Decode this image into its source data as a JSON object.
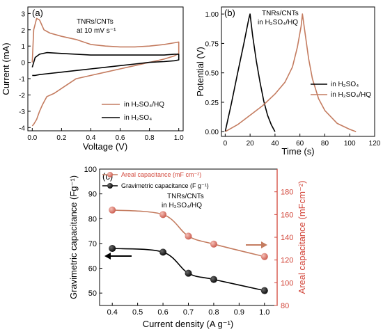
{
  "colors": {
    "brown": "#c47c60",
    "black": "#000000",
    "red_axis": "#d2463a",
    "marker_red": "#d9786a",
    "marker_black": "#111111"
  },
  "chart_data": [
    {
      "panel": "(a)",
      "type": "line",
      "subtype": "cyclic voltammetry",
      "annotation": [
        "TNRs/CNTs",
        "at 10 mV s⁻¹"
      ],
      "xlabel": "Voltage (V)",
      "ylabel": "Current (mA)",
      "xlim": [
        -0.03,
        1.03
      ],
      "ylim": [
        -4.2,
        3.4
      ],
      "xticks": [
        "0.0",
        "0.2",
        "0.4",
        "0.6",
        "0.8",
        "1.0"
      ],
      "yticks": [
        "-4",
        "-3",
        "-2",
        "-1",
        "0",
        "1",
        "2",
        "3"
      ],
      "legend_position": "bottom-right",
      "series": [
        {
          "name": "in H₂SO₄/HQ",
          "color": "brown",
          "x": [
            0.0,
            0.01,
            0.03,
            0.05,
            0.08,
            0.12,
            0.2,
            0.3,
            0.4,
            0.5,
            0.6,
            0.7,
            0.8,
            0.9,
            0.97,
            1.0,
            1.0,
            0.97,
            0.9,
            0.8,
            0.7,
            0.6,
            0.5,
            0.4,
            0.3,
            0.25,
            0.2,
            0.15,
            0.1,
            0.07,
            0.05,
            0.03,
            0.01,
            0.0
          ],
          "y": [
            0.0,
            2.0,
            2.7,
            2.6,
            2.0,
            1.8,
            1.6,
            1.4,
            1.1,
            1.0,
            0.95,
            0.95,
            1.0,
            1.1,
            1.2,
            1.25,
            0.55,
            0.4,
            0.2,
            0.0,
            -0.2,
            -0.4,
            -0.6,
            -0.8,
            -1.0,
            -1.3,
            -1.6,
            -1.9,
            -2.1,
            -2.6,
            -3.0,
            -3.5,
            -3.8,
            -3.9
          ]
        },
        {
          "name": "in H₂SO₄",
          "color": "black",
          "x": [
            0.0,
            0.02,
            0.05,
            0.1,
            0.2,
            0.3,
            0.4,
            0.5,
            0.6,
            0.7,
            0.8,
            0.9,
            0.97,
            1.0,
            1.0,
            0.97,
            0.9,
            0.8,
            0.7,
            0.6,
            0.5,
            0.4,
            0.3,
            0.2,
            0.1,
            0.05,
            0.02,
            0.0
          ],
          "y": [
            -0.3,
            0.3,
            0.5,
            0.6,
            0.55,
            0.5,
            0.45,
            0.45,
            0.45,
            0.45,
            0.45,
            0.45,
            0.5,
            0.5,
            0.15,
            0.1,
            0.05,
            0.0,
            -0.1,
            -0.2,
            -0.3,
            -0.4,
            -0.5,
            -0.6,
            -0.7,
            -0.75,
            -0.8,
            -0.8
          ]
        }
      ]
    },
    {
      "panel": "(b)",
      "type": "line",
      "subtype": "galvanostatic charge-discharge",
      "annotation": [
        "TNRs/CNTs",
        "in H₂SO₄/HQ"
      ],
      "xlabel": "Time (s)",
      "ylabel": "Potential (V)",
      "xlim": [
        -3,
        120
      ],
      "ylim": [
        -0.04,
        1.06
      ],
      "xticks": [
        "0",
        "20",
        "40",
        "60",
        "80",
        "100",
        "120"
      ],
      "yticks": [
        "0.00",
        "0.25",
        "0.50",
        "0.75",
        "1.00"
      ],
      "legend_position": "bottom-right",
      "series": [
        {
          "name": "in H₂SO₄",
          "color": "black",
          "x": [
            0,
            5,
            10,
            15,
            19,
            20,
            22,
            25,
            28,
            31,
            34,
            37,
            40
          ],
          "y": [
            0.0,
            0.24,
            0.5,
            0.75,
            0.96,
            1.0,
            0.82,
            0.6,
            0.42,
            0.26,
            0.14,
            0.06,
            0.0
          ]
        },
        {
          "name": "in H₂SO₄/HQ",
          "color": "brown",
          "x": [
            0,
            10,
            20,
            30,
            40,
            48,
            54,
            58,
            61,
            62,
            64,
            67,
            70,
            75,
            80,
            90,
            100,
            105
          ],
          "y": [
            0.0,
            0.06,
            0.14,
            0.22,
            0.32,
            0.42,
            0.55,
            0.72,
            0.9,
            1.0,
            0.85,
            0.62,
            0.45,
            0.28,
            0.18,
            0.07,
            0.02,
            0.0
          ]
        }
      ]
    },
    {
      "panel": "(c)",
      "type": "scatter",
      "subtype": "dual-axis",
      "annotation": [
        "TNRs/CNTs",
        "in H₂SO₄/HQ"
      ],
      "xlabel": "Current density (A g⁻¹)",
      "ylabel": "Gravimetric capacitance (Fg⁻¹)",
      "ylabel_right": "Areal capacitance (mFcm⁻²)",
      "xlim": [
        0.35,
        1.05
      ],
      "ylim": [
        45,
        100
      ],
      "ylim_right": [
        80,
        200
      ],
      "xticks": [
        "0.4",
        "0.5",
        "0.6",
        "0.7",
        "0.8",
        "0.9",
        "1.0"
      ],
      "yticks": [
        "50",
        "60",
        "70",
        "80",
        "90",
        "100"
      ],
      "yticks_right": [
        "80",
        "100",
        "120",
        "140",
        "160",
        "180"
      ],
      "legend_position": "top-left",
      "x": [
        0.4,
        0.6,
        0.7,
        0.8,
        1.0
      ],
      "series": [
        {
          "name": "Areal capacitance (mF cm⁻²)",
          "axis": "right",
          "color": "marker_red",
          "values": [
            164,
            160,
            141,
            134,
            123
          ]
        },
        {
          "name": "Gravimetric capacitance (F g⁻¹)",
          "axis": "left",
          "color": "marker_black",
          "values": [
            68,
            66.5,
            58,
            55.5,
            51
          ]
        }
      ]
    }
  ]
}
